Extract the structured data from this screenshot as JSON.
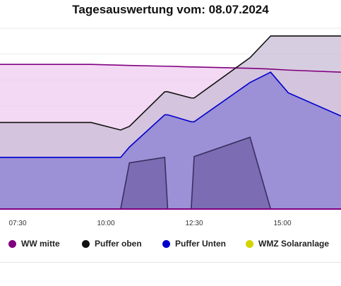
{
  "chart_data": {
    "type": "area",
    "title": "Tagesauswertung vom: 08.07.2024",
    "x_ticks": [
      "07:30",
      "10:00",
      "12:30",
      "15:00"
    ],
    "xlabel": "",
    "ylabel": "",
    "grid": true,
    "legend_position": "bottom",
    "x": [
      "06:55",
      "09:35",
      "10:25",
      "10:40",
      "11:40",
      "11:45",
      "12:25",
      "12:30",
      "14:05",
      "14:40",
      "15:10",
      "16:40"
    ],
    "series": [
      {
        "name": "WW mitte",
        "color": "#800080",
        "fill": "#f0ccf0",
        "values": [
          56.0,
          56.0,
          55.7,
          55.6,
          55.3,
          55.3,
          55.0,
          55.0,
          54.5,
          54.2,
          53.8,
          53.0
        ]
      },
      {
        "name": "Puffer oben",
        "color": "#111111",
        "fill": "#c9bcd6",
        "values": [
          33.5,
          33.5,
          30.6,
          32.0,
          45.4,
          45.4,
          43.0,
          43.0,
          58.6,
          67.0,
          67.0,
          67.0
        ]
      },
      {
        "name": "Puffer Unten",
        "color": "#0000cc",
        "fill": "#8a7fd4",
        "values": [
          20.0,
          20.0,
          20.0,
          24.0,
          36.5,
          36.5,
          33.8,
          33.8,
          49.0,
          53.0,
          45.0,
          36.0
        ]
      },
      {
        "name": "WMZ Solaranlage",
        "color": "#d4d400",
        "fill": "#7060a8",
        "values": [
          0.0,
          0.0,
          0.0,
          17.9,
          20.0,
          0.0,
          0.0,
          20.3,
          27.8,
          0.0,
          0.0,
          0.0
        ]
      }
    ],
    "ylim": [
      0,
      70
    ]
  },
  "legend": [
    {
      "label": "WW mitte",
      "color": "#800080"
    },
    {
      "label": "Puffer oben",
      "color": "#111111"
    },
    {
      "label": "Puffer Unten",
      "color": "#0000cc"
    },
    {
      "label": "WMZ Solaranlage",
      "color": "#d4d400"
    }
  ]
}
